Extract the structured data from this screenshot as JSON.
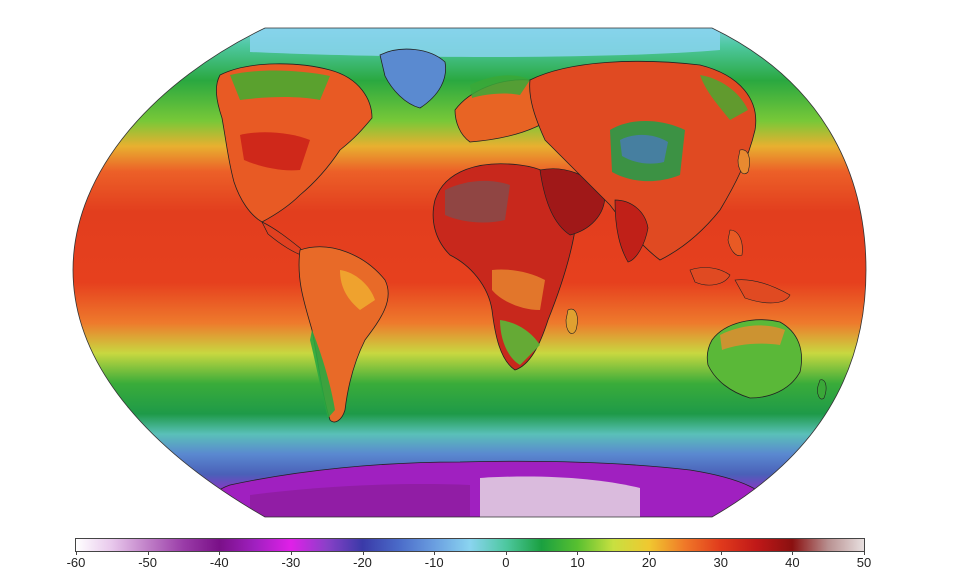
{
  "colorbar": {
    "ticks": [
      "-60",
      "-50",
      "-40",
      "-30",
      "-20",
      "-10",
      "0",
      "10",
      "20",
      "30",
      "40",
      "50"
    ],
    "min": -60,
    "max": 50,
    "stops": [
      {
        "value": -60,
        "color": "#ffffff"
      },
      {
        "value": -55,
        "color": "#e8c8ec"
      },
      {
        "value": -50,
        "color": "#c080c8"
      },
      {
        "value": -45,
        "color": "#9a3ca8"
      },
      {
        "value": -40,
        "color": "#7a1088"
      },
      {
        "value": -35,
        "color": "#a020c0"
      },
      {
        "value": -30,
        "color": "#e020e8"
      },
      {
        "value": -25,
        "color": "#8a40c8"
      },
      {
        "value": -20,
        "color": "#3a3aa8"
      },
      {
        "value": -15,
        "color": "#4a6ac8"
      },
      {
        "value": -10,
        "color": "#6a9ee0"
      },
      {
        "value": -5,
        "color": "#8ad4f0"
      },
      {
        "value": 0,
        "color": "#4ec8a0"
      },
      {
        "value": 5,
        "color": "#1aa040"
      },
      {
        "value": 10,
        "color": "#58c030"
      },
      {
        "value": 15,
        "color": "#c8e040"
      },
      {
        "value": 20,
        "color": "#f0c830"
      },
      {
        "value": 25,
        "color": "#f07828"
      },
      {
        "value": 30,
        "color": "#e03a1c"
      },
      {
        "value": 35,
        "color": "#c01818"
      },
      {
        "value": 40,
        "color": "#8a1010"
      },
      {
        "value": 45,
        "color": "#b89090"
      },
      {
        "value": 50,
        "color": "#e8e0e0"
      }
    ]
  },
  "map": {
    "projection": "robinson",
    "field": "surface-air-temperature",
    "colors": {
      "ocean_warm": "#e64020",
      "ocean_mid": "#f08a30",
      "ocean_cool": "#3ab040",
      "polar_sea": "#80d0e8",
      "antarctic_coast": "#4a78c8",
      "antarctic_interior": "#b020c0",
      "antarctic_high": "#e8d8e8",
      "desert_hot": "#8a4848",
      "land_border": "#222222"
    }
  }
}
